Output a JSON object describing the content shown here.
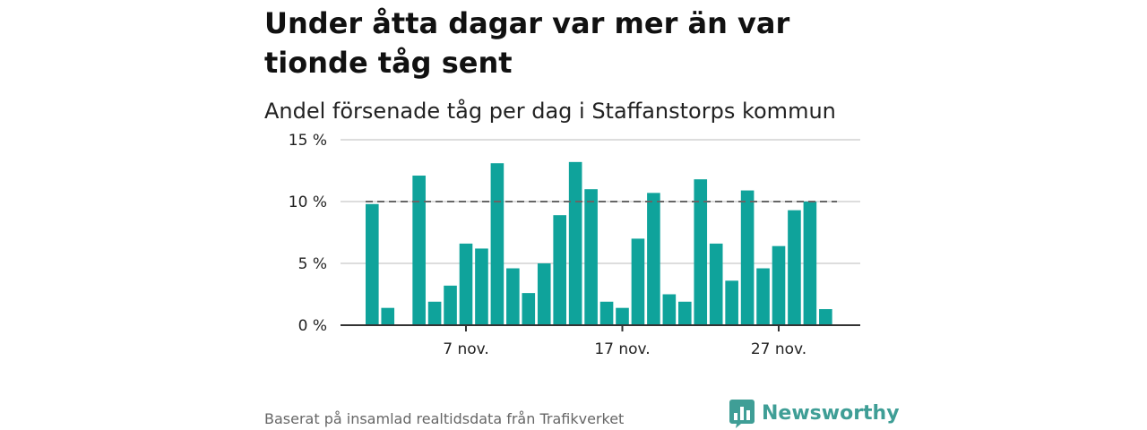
{
  "headline": "Under åtta dagar var mer än var tionde tåg sent",
  "chart_data": {
    "type": "bar",
    "title": "Andel försenade tåg per dag i Staffanstorps kommun",
    "xlabel": "",
    "ylabel": "",
    "ylim": [
      0,
      15
    ],
    "y_ticks": [
      0,
      5,
      10,
      15
    ],
    "y_tick_labels": [
      "0 %",
      "5 %",
      "10 %",
      "15 %"
    ],
    "x_ticks": [
      7,
      17,
      27
    ],
    "x_tick_labels": [
      "7 nov.",
      "17 nov.",
      "27 nov."
    ],
    "reference_line": 10,
    "grid": true,
    "x": [
      1,
      2,
      3,
      4,
      5,
      6,
      7,
      8,
      9,
      10,
      11,
      12,
      13,
      14,
      15,
      16,
      17,
      18,
      19,
      20,
      21,
      22,
      23,
      24,
      25,
      26,
      27,
      28,
      29,
      30,
      31
    ],
    "values": [
      9.8,
      1.4,
      null,
      12.1,
      1.9,
      3.2,
      6.6,
      6.2,
      13.1,
      4.6,
      2.6,
      5.0,
      8.9,
      13.2,
      11.0,
      1.9,
      1.4,
      7.0,
      10.7,
      2.5,
      1.9,
      11.8,
      6.6,
      3.6,
      10.9,
      4.6,
      6.4,
      9.3,
      10.0,
      1.3,
      null
    ],
    "colors": {
      "bar": "#0fa39b",
      "reference_line": "#666666",
      "grid": "#dddddd",
      "axis": "#333333"
    }
  },
  "footer": {
    "source": "Baserat på insamlad realtidsdata från Trafikverket",
    "brand_name": "Newsworthy",
    "brand_icon": "newsworthy-chart-bubble-icon",
    "brand_color": "#3f9e96"
  }
}
